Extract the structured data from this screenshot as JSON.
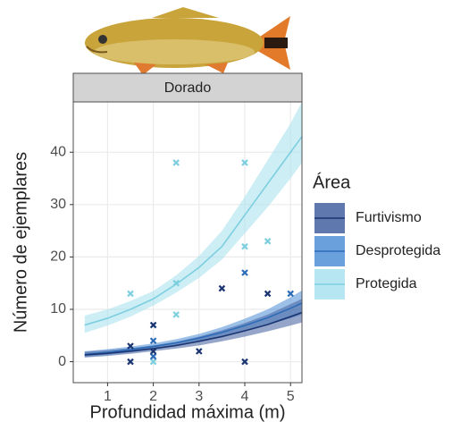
{
  "chart_data": {
    "type": "line",
    "facet": "Dorado",
    "x_label": "Profundidad máxima (m)",
    "y_label": "Número de ejemplares",
    "legend_title": "Área",
    "xlim": [
      0.25,
      5.25
    ],
    "ylim": [
      -4,
      49.6
    ],
    "xticks": [
      1,
      2,
      3,
      4,
      5
    ],
    "yticks": [
      0,
      10,
      20,
      30,
      40
    ],
    "grid": true,
    "x": [
      0.5,
      1,
      1.5,
      2,
      2.5,
      3,
      3.5,
      4,
      4.5,
      5,
      5.25
    ],
    "series": [
      {
        "name": "Furtivismo",
        "color": "#1b3572",
        "ribbon_color": "#4e6aa6",
        "values": [
          1.3,
          1.6,
          2.0,
          2.5,
          3.1,
          3.9,
          4.8,
          5.9,
          7.1,
          8.6,
          9.4
        ],
        "lower": [
          0.8,
          1.1,
          1.5,
          2.0,
          2.5,
          3.1,
          3.9,
          4.8,
          5.8,
          6.9,
          7.5
        ],
        "upper": [
          1.9,
          2.2,
          2.6,
          3.1,
          3.8,
          4.8,
          6,
          7.4,
          9,
          11,
          12
        ],
        "points": {
          "x": [
            1.5,
            1.5,
            2,
            2,
            3,
            3.5,
            4,
            4.5
          ],
          "y": [
            3,
            0,
            7,
            2,
            2,
            14,
            0,
            13
          ]
        }
      },
      {
        "name": "Desprotegida",
        "color": "#2c6cb8",
        "ribbon_color": "#5a96d8",
        "values": [
          1.4,
          1.8,
          2.3,
          2.9,
          3.6,
          4.5,
          5.6,
          6.9,
          8.4,
          10.2,
          11.2
        ],
        "lower": [
          0.9,
          1.3,
          1.8,
          2.4,
          3.0,
          3.8,
          4.7,
          5.8,
          7,
          8.3,
          9
        ],
        "upper": [
          2,
          2.4,
          2.9,
          3.5,
          4.3,
          5.3,
          6.6,
          8.2,
          10,
          12.3,
          13.6
        ],
        "points": {
          "x": [
            2,
            2,
            4,
            5
          ],
          "y": [
            4,
            1,
            17,
            13
          ]
        }
      },
      {
        "name": "Protegida",
        "color": "#7dcfe0",
        "ribbon_color": "#aee3ef",
        "values": [
          7,
          8.3,
          10,
          12,
          14.8,
          18,
          22,
          28,
          34,
          40,
          43
        ],
        "lower": [
          5.5,
          6.9,
          8.6,
          10.7,
          13.2,
          16,
          19.5,
          24.5,
          29.5,
          35,
          38
        ],
        "upper": [
          8.8,
          10,
          11.6,
          13.5,
          16.5,
          20.2,
          25,
          31.5,
          38.5,
          45.5,
          49.6
        ],
        "points": {
          "x": [
            1.5,
            2,
            2.5,
            2.5,
            2.5,
            4,
            4,
            4.5
          ],
          "y": [
            13,
            0,
            38,
            15,
            9,
            38,
            22,
            23
          ]
        }
      }
    ]
  }
}
